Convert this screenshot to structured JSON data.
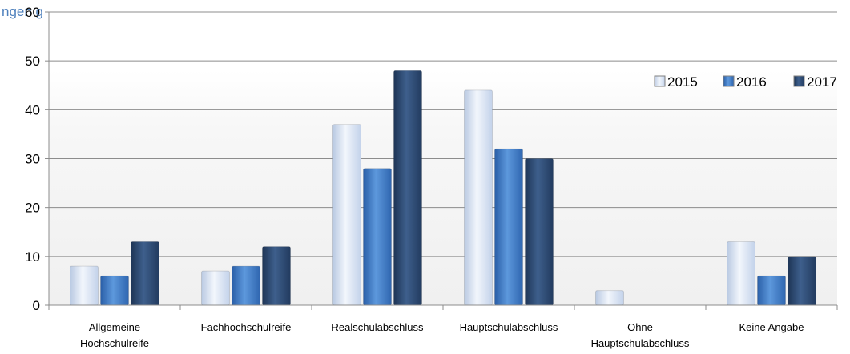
{
  "chart_data": {
    "type": "bar",
    "title": "",
    "partial_title": "ngen                g",
    "xlabel": "",
    "ylabel": "",
    "ylim": [
      0,
      60
    ],
    "yticks": [
      0,
      10,
      20,
      30,
      40,
      50,
      60
    ],
    "grid": true,
    "legend_position": "top-right",
    "categories": [
      [
        "Allgemeine",
        "Hochschulreife"
      ],
      [
        "Fachhochschulreife"
      ],
      [
        "Realschulabschluss"
      ],
      [
        "Hauptschulabschluss"
      ],
      [
        "Ohne",
        "Hauptschulabschluss"
      ],
      [
        "Keine Angabe"
      ]
    ],
    "series": [
      {
        "name": "2015",
        "values": [
          8,
          7,
          37,
          44,
          3,
          13
        ],
        "color": "#dde6f4"
      },
      {
        "name": "2016",
        "values": [
          6,
          8,
          28,
          32,
          0,
          6
        ],
        "color": "#3d7cc9"
      },
      {
        "name": "2017",
        "values": [
          13,
          12,
          48,
          30,
          0,
          10
        ],
        "color": "#2c4a72"
      }
    ]
  }
}
